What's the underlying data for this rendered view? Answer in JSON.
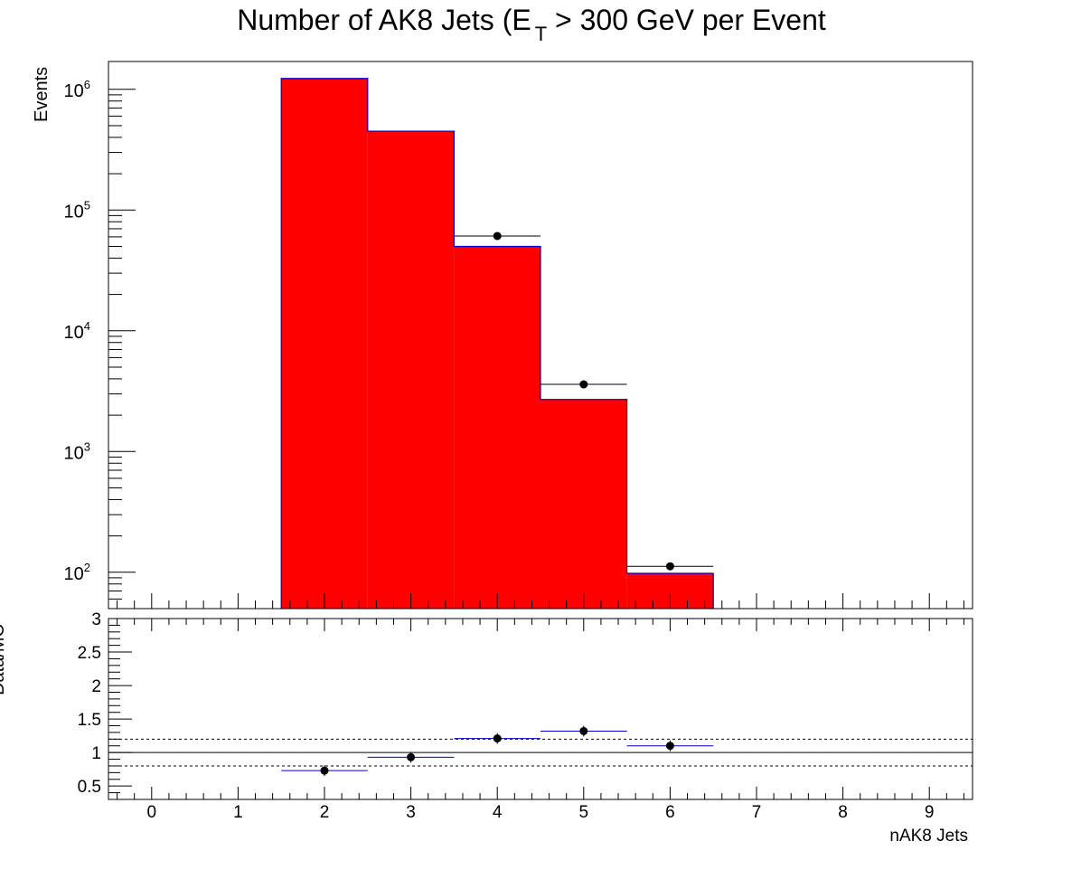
{
  "chart_data": [
    {
      "type": "bar",
      "title_main": "Number of AK8 Jets (E",
      "title_sub": "T",
      "title_rest": " > 300 GeV per Event",
      "ylabel": "Events",
      "y_scale": "log",
      "ylim": [
        50,
        1700000
      ],
      "xlim": [
        -0.5,
        9.5
      ],
      "ytick_bases": [
        "10",
        "10",
        "10",
        "10",
        "10"
      ],
      "ytick_exponents": [
        "2",
        "3",
        "4",
        "5",
        "6"
      ],
      "ytick_values": [
        100,
        1000,
        10000,
        100000,
        1000000
      ],
      "mc_bins": [
        {
          "x": 2,
          "value": 1230000
        },
        {
          "x": 3,
          "value": 450000
        },
        {
          "x": 4,
          "value": 50000
        },
        {
          "x": 5,
          "value": 2700
        },
        {
          "x": 6,
          "value": 98
        }
      ],
      "data_points": [
        {
          "x": 4,
          "value": 61000
        },
        {
          "x": 5,
          "value": 3600
        },
        {
          "x": 6,
          "value": 112
        }
      ],
      "colors": {
        "mc_fill": "#ff0000",
        "mc_line": "#0000cc",
        "data": "#000000"
      }
    },
    {
      "type": "scatter",
      "ylabel": "Data/MC",
      "xlabel": "nAK8 Jets",
      "ylim": [
        0.3,
        3.0
      ],
      "xlim": [
        -0.5,
        9.5
      ],
      "ytick_labels": [
        "0.5",
        "1",
        "1.5",
        "2",
        "2.5",
        "3"
      ],
      "ytick_values": [
        0.5,
        1,
        1.5,
        2,
        2.5,
        3
      ],
      "xtick_labels": [
        "0",
        "1",
        "2",
        "3",
        "4",
        "5",
        "6",
        "7",
        "8",
        "9"
      ],
      "reference_lines": [
        1.0,
        0.8,
        1.2
      ],
      "ratio_points": [
        {
          "x": 2,
          "value": 0.73
        },
        {
          "x": 3,
          "value": 0.93
        },
        {
          "x": 4,
          "value": 1.21
        },
        {
          "x": 5,
          "value": 1.32
        },
        {
          "x": 6,
          "value": 1.1
        }
      ]
    }
  ]
}
